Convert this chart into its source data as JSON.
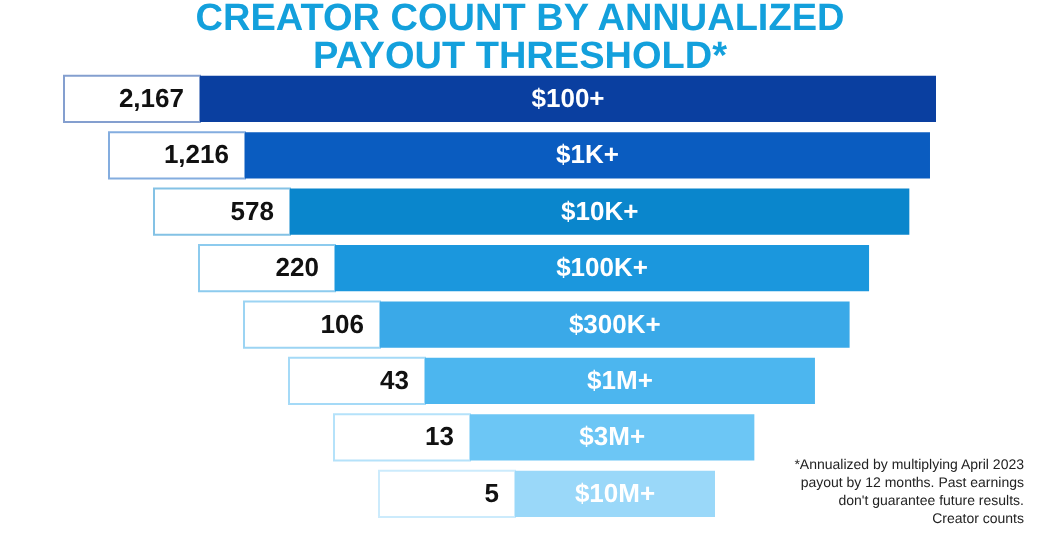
{
  "chart_data": {
    "type": "other",
    "title": "CREATOR COUNT BY ANNUALIZED PAYOUT THRESHOLD*",
    "categories": [
      "$100+",
      "$1K+",
      "$10K+",
      "$100K+",
      "$300K+",
      "$1M+",
      "$3M+",
      "$10M+"
    ],
    "values": [
      2167,
      1216,
      578,
      220,
      106,
      43,
      13,
      5
    ],
    "colors": [
      "#0a3fa0",
      "#0a5cc0",
      "#0a86cc",
      "#1b97dd",
      "#3aa9e8",
      "#4cb6ef",
      "#6cc6f5",
      "#9ad8f9"
    ],
    "value_labels": [
      "2,167",
      "1,216",
      "578",
      "220",
      "106",
      "43",
      "13",
      "5"
    ],
    "annotations": [
      "*Annualized by multiplying April 2023 payout by 12 months. Past earnings don't guarantee future results. Creator counts"
    ]
  }
}
